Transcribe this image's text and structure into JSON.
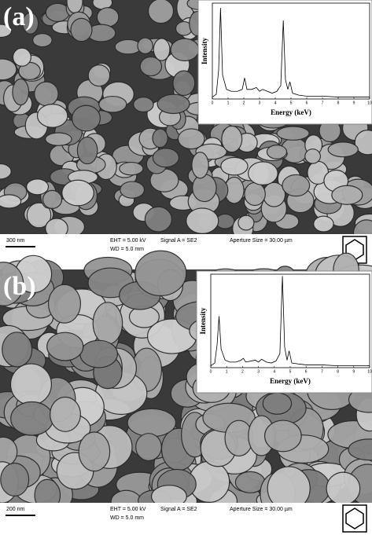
{
  "panels": [
    {
      "label": "(a)",
      "scale_bar": "300 nm",
      "eht": "EHT = 5.00 kV",
      "signal": "Signal A = SE2",
      "aperture": "Aperture Size = 30.00 µm",
      "wd": "WD = 5.0 mm",
      "inset": {
        "type": "line",
        "x_label": "Energy (keV)",
        "y_label": "Intensity",
        "xlim": [
          0,
          10
        ],
        "ylim": [
          0,
          100
        ],
        "xticks": [
          0,
          1,
          2,
          3,
          4,
          5,
          6,
          7,
          8,
          9,
          10
        ],
        "x": [
          0,
          0.25,
          0.4,
          0.52,
          0.65,
          0.9,
          1.2,
          1.6,
          1.9,
          2.05,
          2.2,
          2.5,
          2.8,
          3.0,
          3.2,
          3.5,
          3.8,
          4.1,
          4.35,
          4.51,
          4.65,
          4.8,
          4.93,
          5.1,
          5.5,
          6,
          7,
          8,
          9,
          10
        ],
        "values": [
          2,
          5,
          30,
          95,
          25,
          10,
          8,
          8,
          10,
          22,
          10,
          10,
          12,
          8,
          10,
          8,
          6,
          8,
          14,
          82,
          20,
          10,
          18,
          6,
          4,
          3,
          3,
          2,
          2,
          2
        ]
      }
    },
    {
      "label": "(b)",
      "scale_bar": "200 nm",
      "eht": "EHT = 5.00 kV",
      "signal": "Signal A = SE2",
      "aperture": "Aperture Size = 30.00 µm",
      "wd": "WD = 5.0 mm",
      "inset": {
        "type": "line",
        "x_label": "Energy (keV)",
        "y_label": "Intensity",
        "xlim": [
          0,
          10
        ],
        "ylim": [
          0,
          100
        ],
        "xticks": [
          0,
          1,
          2,
          3,
          4,
          5,
          6,
          7,
          8,
          9,
          10
        ],
        "x": [
          0,
          0.25,
          0.4,
          0.52,
          0.65,
          0.9,
          1.2,
          1.6,
          1.9,
          2.05,
          2.2,
          2.5,
          2.8,
          3.0,
          3.2,
          3.5,
          3.8,
          4.1,
          4.35,
          4.51,
          4.65,
          4.8,
          4.93,
          5.1,
          5.5,
          6,
          7,
          8,
          9,
          10
        ],
        "values": [
          2,
          5,
          25,
          55,
          20,
          8,
          6,
          6,
          8,
          10,
          6,
          7,
          8,
          6,
          9,
          6,
          5,
          7,
          15,
          98,
          22,
          8,
          18,
          5,
          4,
          3,
          3,
          2,
          2,
          2
        ]
      }
    }
  ]
}
